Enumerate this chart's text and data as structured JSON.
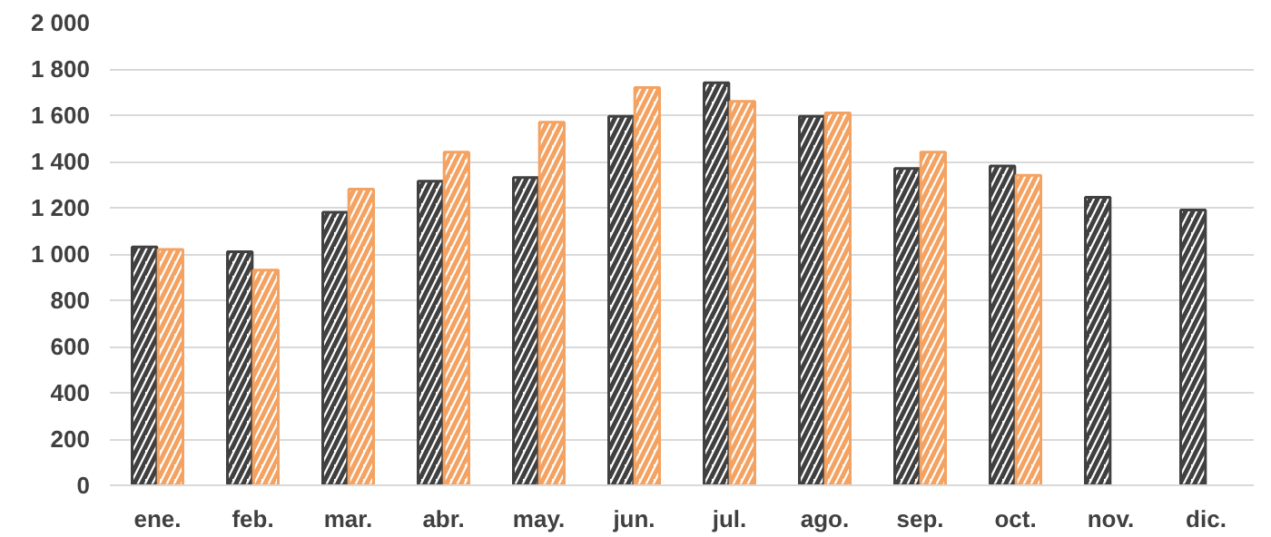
{
  "chart_data": {
    "type": "bar",
    "categories": [
      "ene.",
      "feb.",
      "mar.",
      "abr.",
      "may.",
      "jun.",
      "jul.",
      "ago.",
      "sep.",
      "oct.",
      "nov.",
      "dic."
    ],
    "series": [
      {
        "color": "#404040",
        "values": [
          1030,
          1010,
          1180,
          1315,
          1330,
          1595,
          1740,
          1595,
          1370,
          1380,
          1245,
          1190
        ]
      },
      {
        "color": "#f4a261",
        "values": [
          1020,
          930,
          1280,
          1440,
          1570,
          1720,
          1660,
          1610,
          1440,
          1340,
          null,
          null
        ]
      }
    ],
    "ylim": [
      0,
      2000
    ],
    "yticks": [
      0,
      200,
      400,
      600,
      800,
      {
        "value": 1000,
        "label": "1 000"
      },
      {
        "value": 1200,
        "label": "1 200"
      },
      {
        "value": 1400,
        "label": "1 400"
      },
      {
        "value": 1600,
        "label": "1 600"
      },
      {
        "value": 1800,
        "label": "1 800"
      },
      {
        "value": 2000,
        "label": "2 000"
      }
    ],
    "grid": "y"
  }
}
